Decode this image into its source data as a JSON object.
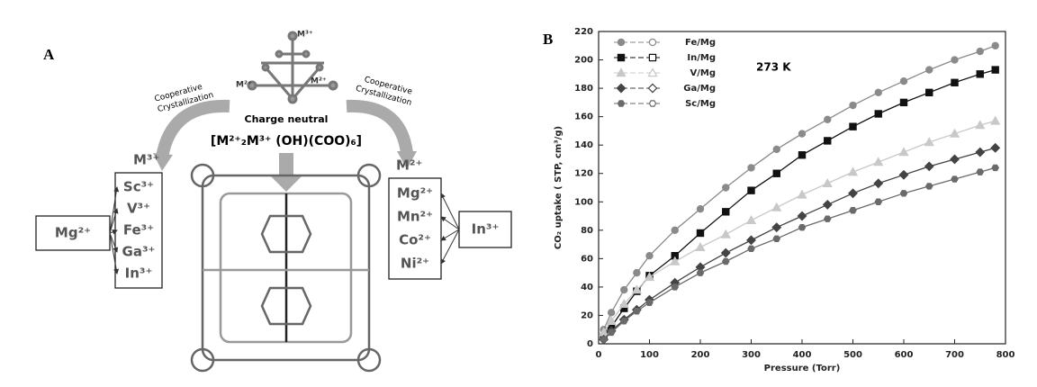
{
  "panel_a": {
    "label": "A",
    "top_m3": "M³⁺",
    "top_m2_left": "M²⁺",
    "top_m2_right": "M²⁺",
    "coop_left": [
      "Cooperative",
      "Crystallization"
    ],
    "coop_right": [
      "Cooperative",
      "Crystallization"
    ],
    "charge_neutral": "Charge neutral",
    "formula": "[M²⁺₂M³⁺ (OH)(COO)₆]",
    "m3_title": "M³⁺",
    "m2_title": "M²⁺",
    "left_source": "Mg²⁺",
    "left_list": [
      "Sc³⁺",
      "V³⁺",
      "Fe³⁺",
      "Ga³⁺",
      "In³⁺"
    ],
    "right_list": [
      "Mg²⁺",
      "Mn²⁺",
      "Co²⁺",
      "Ni²⁺"
    ],
    "right_source": "In³⁺"
  },
  "chart_data": {
    "type": "line",
    "panel_label": "B",
    "annotation": "273 K",
    "x_label": "Pressure (Torr)",
    "y_label": "CO₂ uptake ( STP, cm³/g)",
    "x": [
      10,
      25,
      50,
      75,
      100,
      150,
      200,
      250,
      300,
      350,
      400,
      450,
      500,
      550,
      600,
      650,
      700,
      750,
      780
    ],
    "xlim": [
      0,
      800
    ],
    "xticks": [
      0,
      100,
      200,
      300,
      400,
      500,
      600,
      700,
      800
    ],
    "ylim": [
      0,
      220
    ],
    "yticks": [
      0,
      20,
      40,
      60,
      80,
      100,
      120,
      140,
      160,
      180,
      200,
      220
    ],
    "legend": "upper left",
    "series": [
      {
        "name": "Fe/Mg",
        "color": "#8a8a8a",
        "marker": "circle",
        "values": [
          10,
          22,
          38,
          50,
          62,
          80,
          95,
          110,
          124,
          137,
          148,
          158,
          168,
          177,
          185,
          193,
          200,
          206,
          210
        ]
      },
      {
        "name": "In/Mg",
        "color": "#111111",
        "marker": "square",
        "values": [
          5,
          12,
          25,
          37,
          48,
          62,
          78,
          93,
          108,
          120,
          133,
          143,
          153,
          162,
          170,
          177,
          184,
          190,
          193
        ]
      },
      {
        "name": "V/Mg",
        "color": "#c8c8c8",
        "marker": "triangle",
        "values": [
          8,
          16,
          28,
          38,
          47,
          58,
          68,
          77,
          87,
          96,
          105,
          113,
          121,
          128,
          135,
          142,
          148,
          154,
          157
        ]
      },
      {
        "name": "Ga/Mg",
        "color": "#444444",
        "marker": "diamond",
        "values": [
          3,
          9,
          17,
          24,
          31,
          43,
          54,
          64,
          73,
          82,
          90,
          98,
          106,
          113,
          119,
          125,
          130,
          135,
          138
        ]
      },
      {
        "name": "Sc/Mg",
        "color": "#6a6a6a",
        "marker": "hexagon",
        "values": [
          3,
          8,
          16,
          23,
          29,
          40,
          50,
          58,
          67,
          74,
          82,
          88,
          94,
          100,
          106,
          111,
          116,
          121,
          124
        ]
      }
    ]
  }
}
